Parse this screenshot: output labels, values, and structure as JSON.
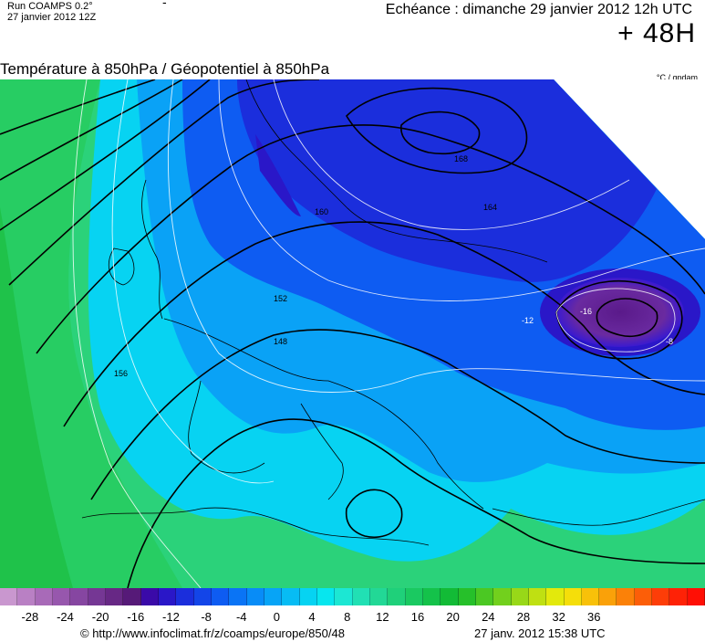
{
  "header": {
    "run_name": "Run COAMPS 0.2°",
    "run_date": "27 janvier 2012 12Z",
    "dash": "-",
    "valid_time": "Echéance : dimanche 29 janvier 2012 12h UTC",
    "lead_time": "+ 48H"
  },
  "map": {
    "title": "Température à 850hPa / Géopotentiel à 850hPa",
    "units": "°C / gpdam",
    "isohypse_labels": [
      "148",
      "152",
      "156",
      "160",
      "164",
      "168"
    ],
    "isotherm_labels": [
      "-16",
      "-12",
      "-8"
    ]
  },
  "colorscale": {
    "tick_labels": [
      "-28",
      "-24",
      "-20",
      "-16",
      "-12",
      "-8",
      "-4",
      "0",
      "4",
      "8",
      "12",
      "16",
      "20",
      "24",
      "28",
      "32",
      "36"
    ],
    "colors": [
      "#c997cf",
      "#b980c4",
      "#a86ab8",
      "#9757ad",
      "#8646a1",
      "#753794",
      "#672885",
      "#561a78",
      "#3a0aa8",
      "#2a17c8",
      "#1b2edc",
      "#1345e8",
      "#0e5cf2",
      "#0a74f5",
      "#088cf7",
      "#07a4f6",
      "#07bcf4",
      "#06d3f2",
      "#07e6ee",
      "#1ce7d3",
      "#21e0b4",
      "#22d896",
      "#1fd07a",
      "#1ac961",
      "#14c24a",
      "#12bb36",
      "#26c02a",
      "#4bc823",
      "#72d01d",
      "#98d818",
      "#bfe012",
      "#e3e90c",
      "#f5de0a",
      "#f8c109",
      "#faa109",
      "#fb8108",
      "#fc5e08",
      "#fd3d08",
      "#fe2206",
      "#ff0f05"
    ],
    "copyright": "© http://www.infoclimat.fr/z/coamps/europe/850/48",
    "generated": "27 janv. 2012 15:38 UTC"
  }
}
